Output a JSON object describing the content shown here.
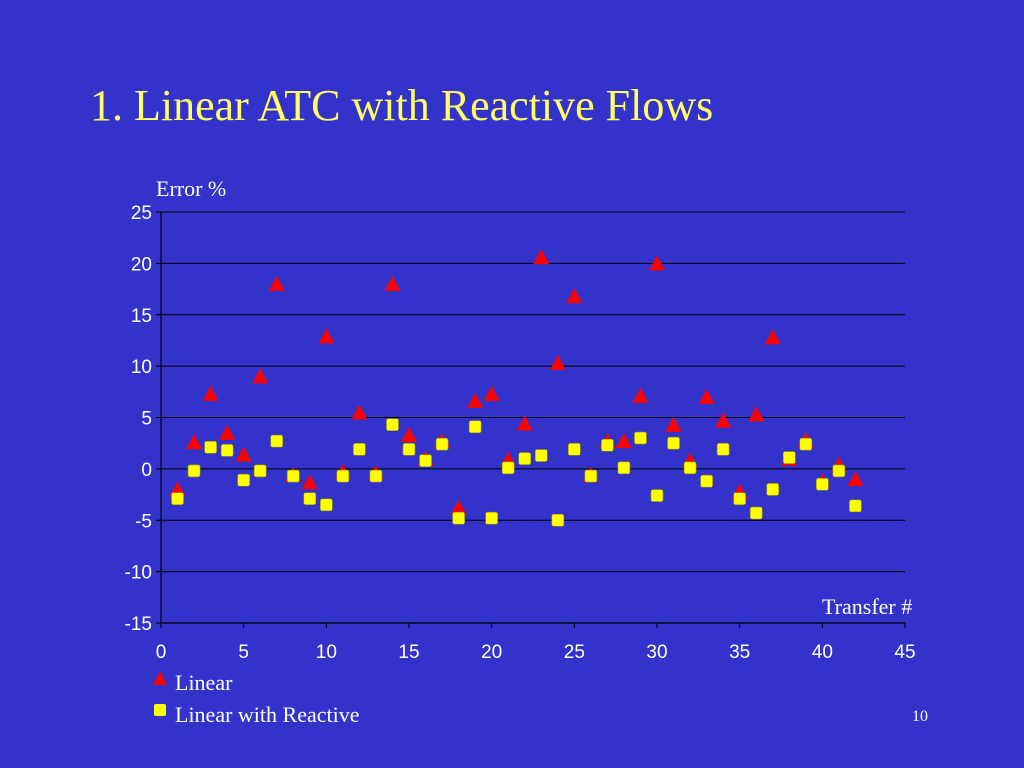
{
  "slide": {
    "title": "1. Linear ATC with Reactive Flows",
    "page_number": "10"
  },
  "chart_data": {
    "type": "scatter",
    "ylabel": "Error %",
    "xlabel": "Transfer #",
    "xlim": [
      0,
      45
    ],
    "ylim": [
      -15,
      25
    ],
    "x_ticks": [
      0,
      5,
      10,
      15,
      20,
      25,
      30,
      35,
      40,
      45
    ],
    "y_ticks": [
      25,
      20,
      15,
      10,
      5,
      0,
      -5,
      -10,
      -15
    ],
    "grid": "horizontal",
    "legend_placement": "bottom-left",
    "series": [
      {
        "name": "Linear",
        "marker": "triangle",
        "color": "#ff0000",
        "x": [
          1,
          2,
          3,
          4,
          5,
          6,
          7,
          8,
          9,
          10,
          11,
          12,
          13,
          14,
          15,
          16,
          17,
          18,
          19,
          20,
          21,
          22,
          23,
          24,
          25,
          26,
          27,
          28,
          29,
          30,
          31,
          32,
          33,
          34,
          35,
          36,
          37,
          38,
          39,
          40,
          41,
          42
        ],
        "y": [
          -2,
          2.6,
          7.3,
          3.5,
          1.4,
          9,
          18,
          -0.6,
          -1.3,
          12.9,
          -0.3,
          5.5,
          -0.4,
          18,
          3.3,
          1,
          2.7,
          -3.8,
          6.6,
          7.3,
          0.9,
          4.4,
          20.6,
          10.3,
          16.8,
          -0.6,
          2.7,
          2.7,
          7.1,
          20,
          4.3,
          0.8,
          7,
          4.7,
          -2.2,
          5.3,
          12.8,
          1,
          2.8,
          -1.2,
          0.4,
          -1
        ]
      },
      {
        "name": "Linear with Reactive",
        "marker": "square",
        "color": "#ffff00",
        "x": [
          1,
          2,
          3,
          4,
          5,
          6,
          7,
          8,
          9,
          10,
          11,
          12,
          13,
          14,
          15,
          16,
          17,
          18,
          19,
          20,
          21,
          22,
          23,
          24,
          25,
          26,
          27,
          28,
          29,
          30,
          31,
          32,
          33,
          34,
          35,
          36,
          37,
          38,
          39,
          40,
          41,
          42
        ],
        "y": [
          -2.9,
          -0.2,
          2.1,
          1.8,
          -1.1,
          -0.2,
          2.7,
          -0.7,
          -2.9,
          -3.5,
          -0.7,
          1.9,
          -0.7,
          4.3,
          1.9,
          0.8,
          2.4,
          -4.8,
          4.1,
          -4.8,
          0.1,
          1.0,
          1.3,
          -5.0,
          1.9,
          -0.7,
          2.3,
          0.1,
          3.0,
          -2.6,
          2.5,
          0.1,
          -1.2,
          1.9,
          -2.9,
          -4.3,
          -2.0,
          1.1,
          2.4,
          -1.5,
          -0.2,
          -3.6
        ]
      }
    ]
  }
}
